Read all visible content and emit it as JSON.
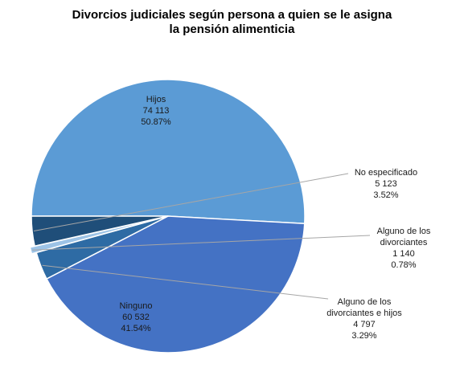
{
  "chart_data": {
    "type": "pie",
    "title_lines": [
      "Divorcios judiciales según persona a quien se le asigna",
      "la pensión alimenticia"
    ],
    "slices": [
      {
        "name": "Hijos",
        "label_lines": [
          "Hijos"
        ],
        "value_text": "74 113",
        "value": 74113,
        "percent_text": "50.87%",
        "percent": 50.87,
        "color": "#5B9BD5"
      },
      {
        "name": "Ninguno",
        "label_lines": [
          "Ninguno"
        ],
        "value_text": "60 532",
        "value": 60532,
        "percent_text": "41.54%",
        "percent": 41.54,
        "color": "#4472C4"
      },
      {
        "name": "Alguno de los divorciantes e hijos",
        "label_lines": [
          "Alguno de los",
          "divorciantes e hijos"
        ],
        "value_text": "4 797",
        "value": 4797,
        "percent_text": "3.29%",
        "percent": 3.29,
        "color": "#2E6BA4"
      },
      {
        "name": "Alguno de los divorciantes",
        "label_lines": [
          "Alguno de los",
          "divorciantes"
        ],
        "value_text": "1 140",
        "value": 1140,
        "percent_text": "0.78%",
        "percent": 0.78,
        "color": "#9DC3E6"
      },
      {
        "name": "No especificado",
        "label_lines": [
          "No especificado"
        ],
        "value_text": "5 123",
        "value": 5123,
        "percent_text": "3.52%",
        "percent": 3.52,
        "color": "#1F4E79"
      }
    ]
  }
}
